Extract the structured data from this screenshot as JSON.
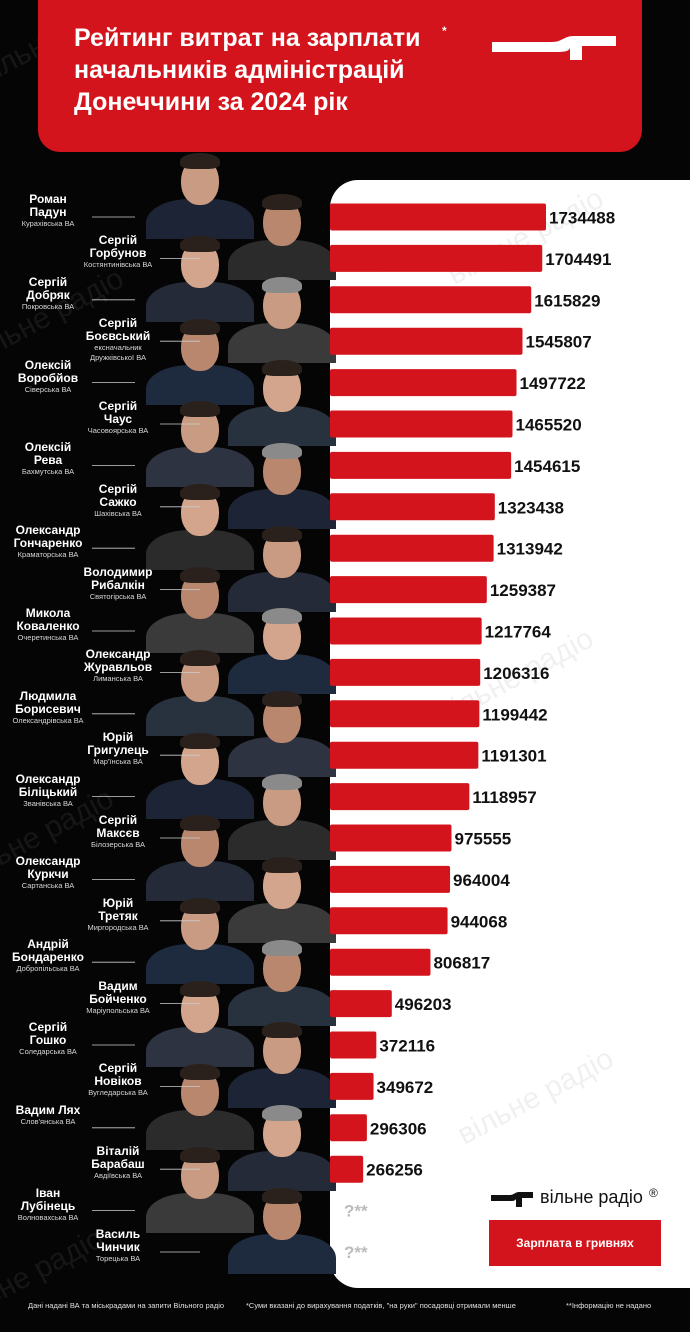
{
  "title": "Рейтинг витрат на зарплати\nначальників адміністрацій\nДонеччини за 2024 рік",
  "title_mark": "*",
  "brand": "вільне радіо",
  "brand_mark": "®",
  "watermark": "вільне радіо",
  "legend_label": "Зарплата в гривнях",
  "no_data_mark": "?**",
  "footnotes": {
    "source": "Дані надані ВА та міськрадами на запити Вільного радіо",
    "note": "*Суми вказані до вирахування податків, \"на руки\" посадовці отримали менше",
    "no_data": "**Інформацію не надано"
  },
  "colors": {
    "accent": "#d4141c",
    "panel": "#ffffff",
    "background": "#050505"
  },
  "officials": [
    {
      "name": "Роман\nПадун",
      "va": "Курахівська ВА"
    },
    {
      "name": "Сергій\nГорбунов",
      "va": "Костянтинівська ВА"
    },
    {
      "name": "Сергій\nДобряк",
      "va": "Покровська ВА"
    },
    {
      "name": "Сергій\nБоєвський",
      "va": "ексначальник\nДружківської ВА"
    },
    {
      "name": "Олексій\nВоробйов",
      "va": "Сіверська ВА"
    },
    {
      "name": "Сергій\nЧаус",
      "va": "Часовоярська ВА"
    },
    {
      "name": "Олексій\nРева",
      "va": "Бахмутська ВА"
    },
    {
      "name": "Сергій\nСажко",
      "va": "Шахівська ВА"
    },
    {
      "name": "Олександр\nГончаренко",
      "va": "Краматорська ВА"
    },
    {
      "name": "Володимир\nРибалкін",
      "va": "Святогірська ВА"
    },
    {
      "name": "Микола\nКоваленко",
      "va": "Очеретинська ВА"
    },
    {
      "name": "Олександр\nЖуравльов",
      "va": "Лиманська ВА"
    },
    {
      "name": "Людмила\nБорисевич",
      "va": "Олександрівська ВА"
    },
    {
      "name": "Юрій\nГригулець",
      "va": "Мар'їнська ВА"
    },
    {
      "name": "Олександр\nБіліцький",
      "va": "Званівська ВА"
    },
    {
      "name": "Сергій\nМаксєв",
      "va": "Білозерська ВА"
    },
    {
      "name": "Олександр\nКуркчи",
      "va": "Сартанська ВА"
    },
    {
      "name": "Юрій\nТретяк",
      "va": "Миргородська ВА"
    },
    {
      "name": "Андрій\nБондаренко",
      "va": "Добропільська ВА"
    },
    {
      "name": "Вадим\nБойченко",
      "va": "Маріупольська ВА"
    },
    {
      "name": "Сергій\nГошко",
      "va": "Соледарська ВА"
    },
    {
      "name": "Сергій\nНовіков",
      "va": "Вугледарська ВА"
    },
    {
      "name": "Вадим Лях",
      "va": "Слов'янська ВА"
    },
    {
      "name": "Віталій\nБарабаш",
      "va": "Авдіївська ВА"
    },
    {
      "name": "Іван\nЛубінець",
      "va": "Волновахська ВА"
    },
    {
      "name": "Василь\nЧинчик",
      "va": "Торецька ВА"
    }
  ],
  "chart_data": {
    "type": "bar",
    "orientation": "horizontal",
    "unit": "Зарплата в гривнях",
    "categories": [
      "Роман Падун",
      "Сергій Горбунов",
      "Сергій Добряк",
      "Сергій Боєвський",
      "Олексій Воробйов",
      "Сергій Чаус",
      "Олексій Рева",
      "Сергій Сажко",
      "Олександр Гончаренко",
      "Володимир Рибалкін",
      "Микола Коваленко",
      "Олександр Журавльов",
      "Людмила Борисевич",
      "Юрій Григулець",
      "Олександр Біліцький",
      "Сергій Максєв",
      "Олександр Куркчи",
      "Юрій Третяк",
      "Андрій Бондаренко",
      "Вадим Бойченко",
      "Сергій Гошко",
      "Сергій Новіков",
      "Вадим Лях",
      "Віталій Барабаш",
      "Іван Лубінець",
      "Василь Чинчик"
    ],
    "values": [
      1734488,
      1704491,
      1615829,
      1545807,
      1497722,
      1465520,
      1454615,
      1323438,
      1313942,
      1259387,
      1217764,
      1206316,
      1199442,
      1191301,
      1118957,
      975555,
      964004,
      944068,
      806817,
      496203,
      372116,
      349672,
      296306,
      266256,
      null,
      null
    ],
    "value_labels": [
      "1734488",
      "1704491",
      "1615829",
      "1545807",
      "1497722",
      "1465520",
      "1454615",
      "1323438",
      "1313942",
      "1259387",
      "1217764",
      "1206316",
      "1199442",
      "1191301",
      "1118957",
      "975555",
      "964004",
      "944068",
      "806817",
      "496203",
      "372116",
      "349672",
      "296306",
      "266256",
      "?**",
      "?**"
    ],
    "bar_color": "#d4141c"
  }
}
